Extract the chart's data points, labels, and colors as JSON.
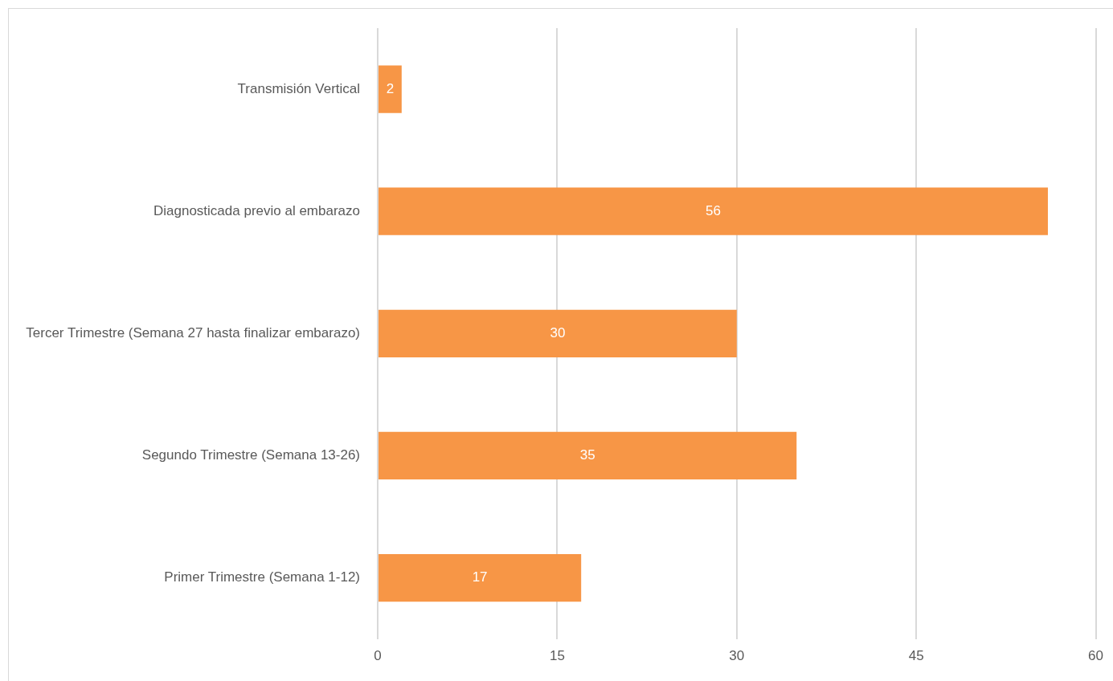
{
  "chart_data": {
    "type": "bar",
    "orientation": "horizontal",
    "categories": [
      "Transmisión Vertical",
      "Diagnosticada previo al embarazo",
      "Tercer Trimestre (Semana 27 hasta finalizar embarazo)",
      "Segundo Trimestre (Semana 13-26)",
      "Primer Trimestre (Semana 1-12)"
    ],
    "values": [
      2,
      56,
      30,
      35,
      17
    ],
    "color": "#f79646",
    "xlim": [
      0,
      60
    ],
    "xticks": [
      0,
      15,
      30,
      45,
      60
    ],
    "grid": "x",
    "data_labels": true,
    "legend": false
  }
}
